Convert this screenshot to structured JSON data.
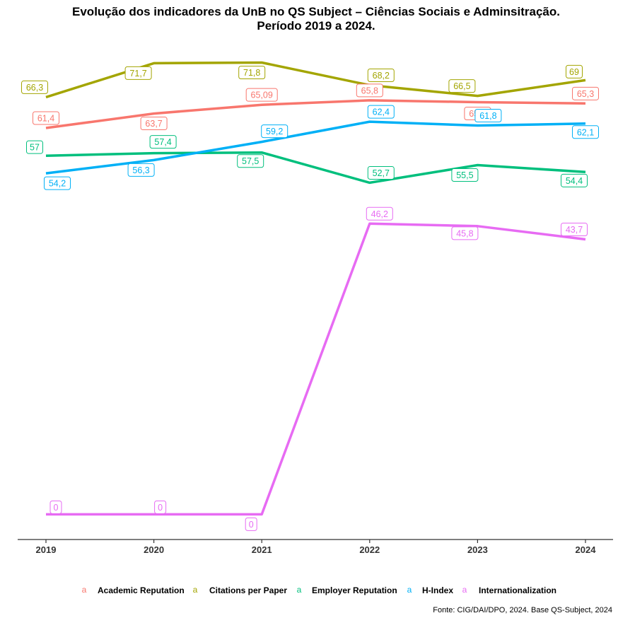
{
  "chart_data": {
    "type": "line",
    "title": "Evolução dos indicadores da UnB no QS Subject – Ciências Sociais e Adminsitração.",
    "subtitle": "Período 2019 a 2024.",
    "caption": "Fonte: CIG/DAI/DPO, 2024. Base QS-Subject, 2024",
    "legend_key_glyph": "a",
    "legend_position": "bottom",
    "grid": false,
    "x": [
      "2019",
      "2020",
      "2021",
      "2022",
      "2023",
      "2024"
    ],
    "ylim": [
      -4,
      75
    ],
    "series": [
      {
        "name": "Academic Reputation",
        "color": "#F8766D",
        "values": [
          61.4,
          63.7,
          65.09,
          65.8,
          65.5,
          65.3
        ],
        "labels": [
          "61,4",
          "63,7",
          "65,09",
          "65,8",
          "65,5",
          "65,3"
        ]
      },
      {
        "name": "Citations per Paper",
        "color": "#A3A500",
        "values": [
          66.3,
          71.7,
          71.8,
          68.2,
          66.5,
          69
        ],
        "labels": [
          "66,3",
          "71,7",
          "71,8",
          "68,2",
          "66,5",
          "69"
        ]
      },
      {
        "name": "Employer Reputation",
        "color": "#00BF7D",
        "values": [
          57,
          57.4,
          57.5,
          52.7,
          55.5,
          54.4
        ],
        "labels": [
          "57",
          "57,4",
          "57,5",
          "52,7",
          "55,5",
          "54,4"
        ]
      },
      {
        "name": "H-Index",
        "color": "#00B0F6",
        "values": [
          54.2,
          56.3,
          59.2,
          62.4,
          61.8,
          62.1
        ],
        "labels": [
          "54,2",
          "56,3",
          "59,2",
          "62,4",
          "61,8",
          "62,1"
        ]
      },
      {
        "name": "Internationalization",
        "color": "#E76BF3",
        "values": [
          0,
          0,
          0,
          46.2,
          45.8,
          43.7
        ],
        "labels": [
          "0",
          "0",
          "0",
          "46,2",
          "45,8",
          "43,7"
        ]
      }
    ]
  }
}
